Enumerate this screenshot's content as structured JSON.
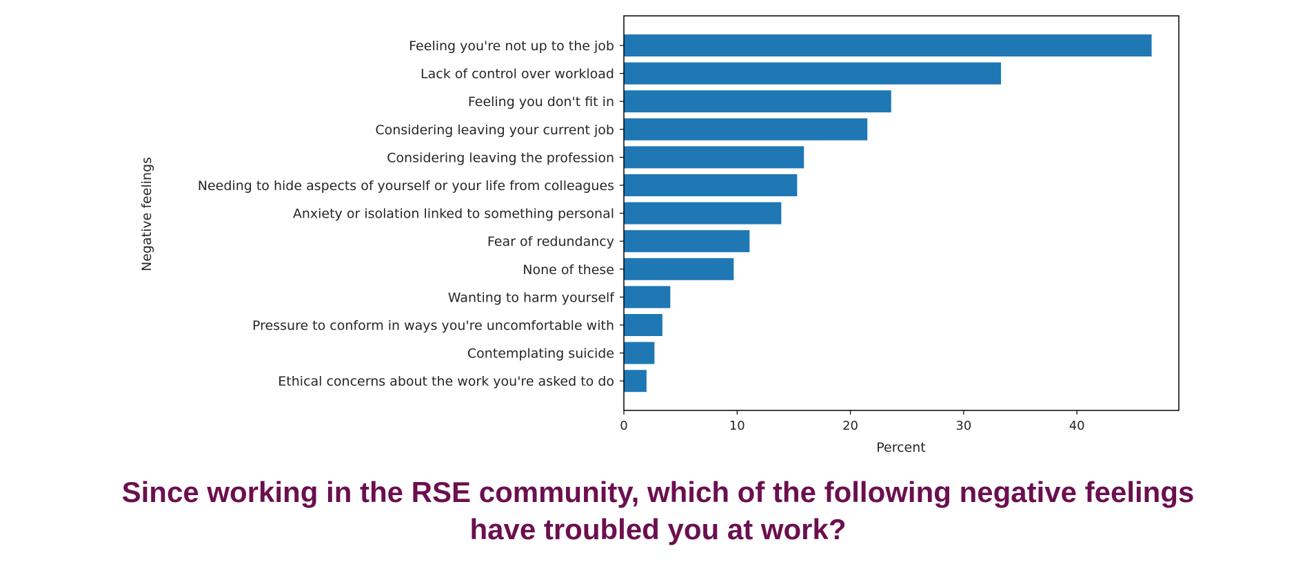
{
  "chart_data": {
    "type": "bar",
    "orientation": "horizontal",
    "categories": [
      "Feeling you're not up to the job",
      "Lack of control over workload",
      "Feeling you don't fit in",
      "Considering leaving your current job",
      "Considering leaving the profession",
      "Needing to hide aspects of yourself or your life from colleagues",
      "Anxiety or isolation linked to something personal",
      "Fear of redundancy",
      "None of these",
      "Wanting to harm yourself",
      "Pressure to conform in ways you're uncomfortable with",
      "Contemplating suicide",
      "Ethical concerns about the work you're asked to do"
    ],
    "values": [
      46.6,
      33.3,
      23.6,
      21.5,
      15.9,
      15.3,
      13.9,
      11.1,
      9.7,
      4.1,
      3.4,
      2.7,
      2.0
    ],
    "xlabel": "Percent",
    "ylabel": "Negative feelings",
    "xlim": [
      0,
      49
    ],
    "xticks": [
      "0",
      "10",
      "20",
      "30",
      "40"
    ],
    "grid": false,
    "bar_color": "#1f77b4"
  },
  "caption": {
    "line1": "Since working in the RSE community, which of the following negative feelings",
    "line2": "have troubled you at work?"
  }
}
